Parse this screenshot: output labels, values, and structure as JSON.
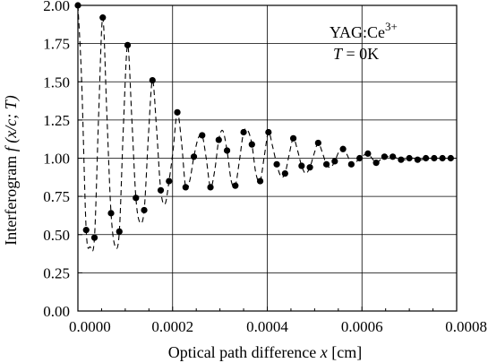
{
  "chart_data": {
    "type": "scatter",
    "xlabel_text": "Optical path difference",
    "xlabel_var": "x",
    "xlabel_unit": "[cm]",
    "ylabel_text": "Interferogram",
    "ylabel_func": "f (x/c; T)",
    "annotation_line1": "YAG:Ce",
    "annotation_line1_sup": "3+",
    "annotation_line2_var": "T",
    "annotation_line2_rest": " = 0K",
    "xlim": [
      0,
      0.0008
    ],
    "ylim": [
      0,
      2.0
    ],
    "x_ticks": [
      0,
      0.0002,
      0.0004,
      0.0006,
      0.0008
    ],
    "x_tick_labels": [
      "0.0000",
      "0.0002",
      "0.0004",
      "0.0006",
      "0.0008"
    ],
    "y_ticks": [
      0,
      0.25,
      0.5,
      0.75,
      1.0,
      1.25,
      1.5,
      1.75,
      2.0
    ],
    "y_tick_labels": [
      "0.00",
      "0.25",
      "0.50",
      "0.75",
      "1.00",
      "1.25",
      "1.50",
      "1.75",
      "2.00"
    ],
    "grid": true,
    "series": [
      {
        "style": "markers",
        "x": [
          0.0,
          1.75e-05,
          3.5e-05,
          5.25e-05,
          7e-05,
          8.75e-05,
          0.000105,
          0.0001225,
          0.00014,
          0.0001575,
          0.000175,
          0.0001925,
          0.00021,
          0.0002275,
          0.000245,
          0.0002625,
          0.00028,
          0.0002975,
          0.000315,
          0.0003325,
          0.00035,
          0.0003675,
          0.000385,
          0.0004025,
          0.00042,
          0.0004375,
          0.000455,
          0.0004725,
          0.00049,
          0.0005075,
          0.000525,
          0.0005425,
          0.00056,
          0.0005775,
          0.000595,
          0.0006125,
          0.00063,
          0.0006475,
          0.000665,
          0.0006825,
          0.0007,
          0.0007175,
          0.000735,
          0.0007525,
          0.00077,
          0.0007875
        ],
        "y": [
          2.0,
          0.53,
          0.48,
          1.92,
          0.64,
          0.52,
          1.74,
          0.74,
          0.66,
          1.51,
          0.79,
          0.85,
          1.3,
          0.81,
          1.01,
          1.15,
          0.81,
          1.12,
          1.05,
          0.82,
          1.17,
          1.09,
          0.85,
          1.17,
          0.96,
          0.9,
          1.13,
          0.95,
          0.94,
          1.1,
          0.96,
          0.98,
          1.06,
          0.96,
          1.0,
          1.03,
          0.97,
          1.01,
          1.01,
          0.99,
          1.0,
          0.99,
          1.0,
          1.0,
          1.0,
          1.0
        ]
      },
      {
        "style": "dashed-line",
        "x": [
          0.0,
          8e-06,
          1.75e-05,
          2.6e-05,
          3.5e-05,
          4.4e-05,
          5.25e-05,
          6.1e-05,
          7e-05,
          7.9e-05,
          8.75e-05,
          9.6e-05,
          0.000105,
          0.000114,
          0.0001225,
          0.000131,
          0.00014,
          0.000149,
          0.0001575,
          0.000166,
          0.000175,
          0.000184,
          0.0001925,
          0.000201,
          0.00021,
          0.000219,
          0.0002275,
          0.000236,
          0.000245,
          0.000254,
          0.0002625,
          0.000271,
          0.00028,
          0.000289,
          0.0002975,
          0.000306,
          0.000315,
          0.000324,
          0.0003325,
          0.000341,
          0.00035,
          0.000359,
          0.0003675,
          0.000376,
          0.000385,
          0.000394,
          0.0004025,
          0.000411,
          0.00042,
          0.000429,
          0.0004375,
          0.000446,
          0.000455,
          0.000464,
          0.0004725,
          0.000481,
          0.00049,
          0.000499,
          0.0005075,
          0.000516,
          0.000525,
          0.000534,
          0.0005425,
          0.000551,
          0.00056,
          0.000569,
          0.0005775,
          0.000586,
          0.000595,
          0.000604,
          0.0006125,
          0.000621,
          0.00063,
          0.000639,
          0.0006475,
          0.000656,
          0.000665,
          0.000674,
          0.0006825,
          0.000691,
          0.0007,
          0.000709,
          0.0007175,
          0.000726,
          0.000735,
          0.000744,
          0.0007525,
          0.000761,
          0.00077,
          0.000779,
          0.0007875,
          0.0008
        ],
        "y": [
          2.0,
          1.5,
          0.53,
          0.42,
          0.48,
          1.3,
          1.92,
          1.3,
          0.64,
          0.42,
          0.52,
          1.2,
          1.74,
          1.25,
          0.74,
          0.58,
          0.66,
          1.15,
          1.51,
          1.2,
          0.79,
          0.7,
          0.85,
          1.05,
          1.3,
          1.1,
          0.81,
          0.85,
          1.01,
          1.13,
          1.15,
          1.0,
          0.81,
          0.92,
          1.12,
          1.18,
          1.05,
          0.85,
          0.82,
          0.98,
          1.17,
          1.18,
          1.09,
          0.9,
          0.85,
          1.02,
          1.17,
          1.08,
          0.96,
          0.88,
          0.9,
          1.02,
          1.13,
          1.05,
          0.95,
          0.9,
          0.94,
          1.03,
          1.1,
          1.04,
          0.96,
          0.94,
          0.98,
          1.04,
          1.06,
          1.02,
          0.96,
          0.97,
          1.0,
          1.02,
          1.03,
          1.0,
          0.97,
          0.99,
          1.01,
          1.01,
          1.01,
          1.0,
          0.99,
          0.99,
          1.0,
          1.0,
          0.99,
          0.99,
          1.0,
          1.0,
          1.0,
          1.0,
          1.0,
          1.0,
          1.0,
          1.0
        ]
      }
    ]
  }
}
